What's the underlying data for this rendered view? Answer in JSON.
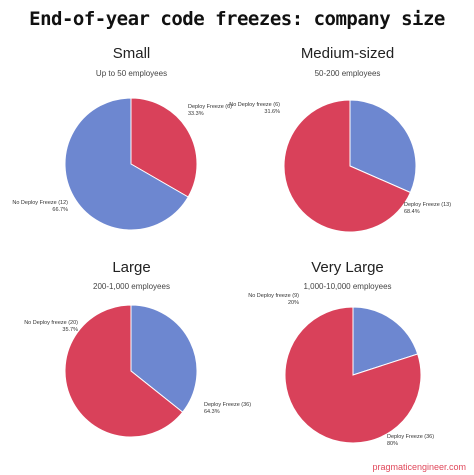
{
  "page_title": "End-of-year code freezes: company size",
  "watermark": "pragmaticengineer.com",
  "colors": {
    "deploy_freeze": "#d9415a",
    "no_deploy_freeze": "#6d87d0"
  },
  "chart_data": [
    {
      "type": "pie",
      "title": "Small",
      "subtitle": "Up to 50 employees",
      "slices": [
        {
          "label": "Deploy Freeze (6)",
          "pct_label": "33.3%",
          "value": 6,
          "color": "#d9415a"
        },
        {
          "label": "No Deploy Freeze (12)",
          "pct_label": "66.7%",
          "value": 12,
          "color": "#6d87d0"
        }
      ]
    },
    {
      "type": "pie",
      "title": "Medium-sized",
      "subtitle": "50-200 employees",
      "slices": [
        {
          "label": "No Deploy freeze (6)",
          "pct_label": "31.6%",
          "value": 6,
          "color": "#6d87d0"
        },
        {
          "label": "Deploy Freeze (13)",
          "pct_label": "68.4%",
          "value": 13,
          "color": "#d9415a"
        }
      ]
    },
    {
      "type": "pie",
      "title": "Large",
      "subtitle": "200-1,000 employees",
      "slices": [
        {
          "label": "No Deploy freeze (20)",
          "pct_label": "35.7%",
          "value": 20,
          "color": "#6d87d0"
        },
        {
          "label": "Deploy Freeze (36)",
          "pct_label": "64.3%",
          "value": 36,
          "color": "#d9415a"
        }
      ]
    },
    {
      "type": "pie",
      "title": "Very Large",
      "subtitle": "1,000-10,000 employees",
      "slices": [
        {
          "label": "No Deploy freeze (9)",
          "pct_label": "20%",
          "value": 9,
          "color": "#6d87d0"
        },
        {
          "label": "Deploy Freeze (36)",
          "pct_label": "80%",
          "value": 36,
          "color": "#d9415a"
        }
      ]
    }
  ]
}
